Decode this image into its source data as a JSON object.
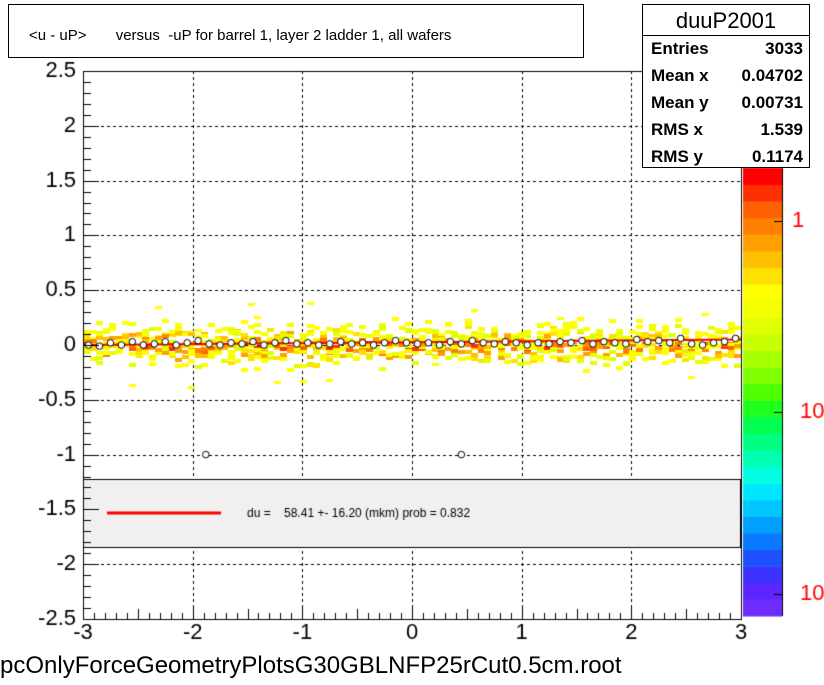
{
  "title": "<u - uP>       versus  -uP for barrel 1, layer 2 ladder 1, all wafers",
  "footer": "pcOnlyForceGeometryPlotsG30GBLNFP25rCut0.5cm.root",
  "stats": {
    "name": "duuP2001",
    "rows": [
      {
        "label": "Entries",
        "value": "3033"
      },
      {
        "label": "Mean x",
        "value": "0.04702"
      },
      {
        "label": "Mean y",
        "value": "0.00731"
      },
      {
        "label": "RMS x",
        "value": "1.539"
      },
      {
        "label": "RMS y",
        "value": "0.1174"
      }
    ]
  },
  "legend": {
    "line_color": "#ff0000",
    "text": "du =    58.41 +- 16.20 (mkm) prob = 0.832"
  },
  "chart_data": {
    "type": "scatter",
    "xlim": [
      -3,
      3
    ],
    "ylim": [
      -2.5,
      2.5
    ],
    "xticks": [
      "-3",
      "-2",
      "-1",
      "0",
      "1",
      "2",
      "3"
    ],
    "yticks": [
      "2.5",
      "2",
      "1.5",
      "1",
      "0.5",
      "0",
      "-0.5",
      "-1",
      "-1.5",
      "-2",
      "-2.5"
    ],
    "grid": true,
    "colorbar_labels": [
      "1",
      "10",
      "10"
    ],
    "colorbar_colors": [
      "#6f2cff",
      "#5b26ff",
      "#3c32ff",
      "#1e50ff",
      "#0a78ff",
      "#00a0ff",
      "#00c8ff",
      "#00e6ff",
      "#00ffe0",
      "#00ffb0",
      "#00ff80",
      "#00ff50",
      "#20ff20",
      "#50ff00",
      "#80ff00",
      "#a8ff00",
      "#c8ff00",
      "#e0ff00",
      "#f4ff00",
      "#ffff00",
      "#ffe000",
      "#ffc000",
      "#ffa000",
      "#ff8000",
      "#ff6000",
      "#ff3000",
      "#ff0000"
    ],
    "profile_points": {
      "x": [
        -2.95,
        -2.85,
        -2.75,
        -2.65,
        -2.55,
        -2.45,
        -2.35,
        -2.25,
        -2.15,
        -2.05,
        -1.95,
        -1.85,
        -1.75,
        -1.65,
        -1.55,
        -1.45,
        -1.35,
        -1.25,
        -1.15,
        -1.05,
        -0.95,
        -0.85,
        -0.75,
        -0.65,
        -0.55,
        -0.45,
        -0.35,
        -0.25,
        -0.15,
        -0.05,
        0.05,
        0.15,
        0.25,
        0.35,
        0.45,
        0.55,
        0.65,
        0.75,
        0.85,
        0.95,
        1.05,
        1.15,
        1.25,
        1.35,
        1.45,
        1.55,
        1.65,
        1.75,
        1.85,
        1.95,
        2.05,
        2.15,
        2.25,
        2.35,
        2.45,
        2.55,
        2.65,
        2.75,
        2.85,
        2.95
      ],
      "y": [
        0.0,
        -0.01,
        0.02,
        0.0,
        0.03,
        0.0,
        0.01,
        0.03,
        0.0,
        0.02,
        0.04,
        0.01,
        0.0,
        0.02,
        0.01,
        0.03,
        0.0,
        0.02,
        0.04,
        0.01,
        0.02,
        0.0,
        0.01,
        0.03,
        0.01,
        0.02,
        0.0,
        0.02,
        0.04,
        0.02,
        0.01,
        0.02,
        0.0,
        0.03,
        0.01,
        0.04,
        0.02,
        0.01,
        0.03,
        0.02,
        0.0,
        0.02,
        0.01,
        0.03,
        0.02,
        0.04,
        0.01,
        0.03,
        0.02,
        0.01,
        0.05,
        0.03,
        0.04,
        0.02,
        0.06,
        0.01,
        0.0,
        0.02,
        0.03,
        0.06
      ]
    },
    "outliers": {
      "x": [
        -1.88,
        0.45
      ],
      "y": [
        -1.0,
        -1.0
      ]
    },
    "fit": {
      "x": [
        -3,
        3
      ],
      "y": [
        0.0,
        0.05
      ]
    }
  }
}
